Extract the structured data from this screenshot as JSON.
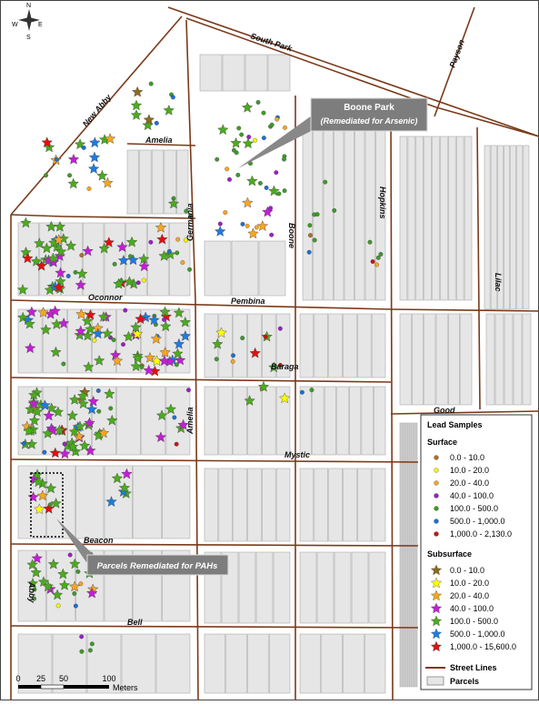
{
  "north_arrow": {
    "n": "N",
    "s": "S",
    "e": "E",
    "w": "W"
  },
  "street_labels": [
    "South Park",
    "Payson",
    "New Abby",
    "Amelia",
    "Germania",
    "Boone",
    "Hopkins",
    "Lilac",
    "Oconnor",
    "Pembina",
    "Baraga",
    "Good",
    "Amelia",
    "Mystic",
    "Beacon",
    "Abby",
    "Bell"
  ],
  "callouts": [
    {
      "title": "Boone Park",
      "subtitle": "(Remediated for Arsenic)"
    },
    {
      "title": "Parcels Remediated for PAHs"
    }
  ],
  "legend": {
    "title": "Lead Samples",
    "surface": {
      "heading": "Surface",
      "items": [
        {
          "label": "0.0 - 10.0",
          "color": "#b0702a"
        },
        {
          "label": "10.0 - 20.0",
          "color": "#f5f500"
        },
        {
          "label": "20.0 - 40.0",
          "color": "#f5a623"
        },
        {
          "label": "40.0 - 100.0",
          "color": "#9b1fc8"
        },
        {
          "label": "100.0 - 500.0",
          "color": "#3f9a2a"
        },
        {
          "label": "500.0 - 1,000.0",
          "color": "#1f6fd1"
        },
        {
          "label": "1,000.0 - 2,130.0",
          "color": "#c81414"
        }
      ]
    },
    "subsurface": {
      "heading": "Subsurface",
      "items": [
        {
          "label": "0.0 - 10.0",
          "color": "#8b6a1e"
        },
        {
          "label": "10.0 - 20.0",
          "color": "#ffff00"
        },
        {
          "label": "20.0 - 40.0",
          "color": "#f5a623"
        },
        {
          "label": "40.0 - 100.0",
          "color": "#c21fd6"
        },
        {
          "label": "100.0 - 500.0",
          "color": "#4caa1f"
        },
        {
          "label": "500.0 - 1,000.0",
          "color": "#1e7be0"
        },
        {
          "label": "1,000.0 - 15,600.0",
          "color": "#e01010"
        }
      ]
    },
    "street_lines": "Street Lines",
    "parcels": "Parcels"
  },
  "scale_bar": {
    "ticks": [
      "0",
      "25",
      "50",
      "100"
    ],
    "unit": "Meters"
  }
}
